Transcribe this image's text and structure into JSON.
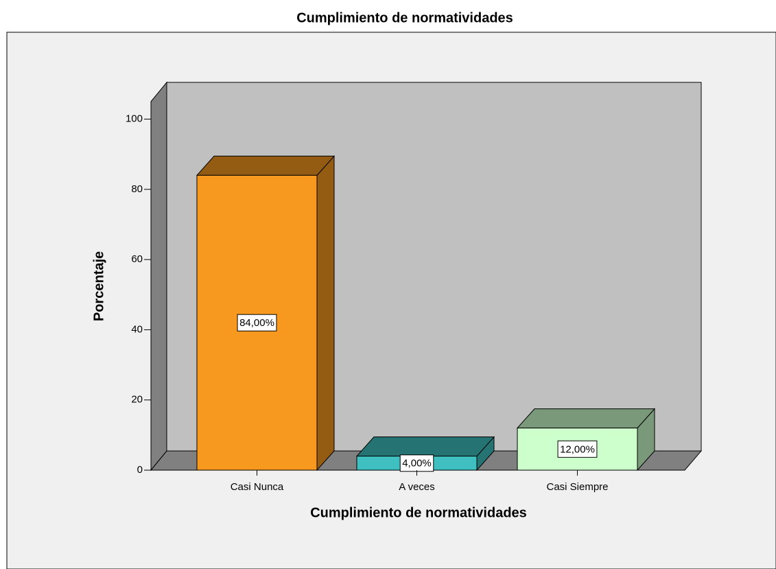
{
  "chart_data": {
    "type": "bar",
    "title": "Cumplimiento de normatividades",
    "xlabel": "Cumplimiento de normatividades",
    "ylabel": "Porcentaje",
    "categories": [
      "Casi Nunca",
      "A veces",
      "Casi Siempre"
    ],
    "values": [
      84,
      4,
      12
    ],
    "value_labels": [
      "84,00%",
      "4,00%",
      "12,00%"
    ],
    "colors": [
      "#f7991f",
      "#3fbfbf",
      "#ccffcc"
    ],
    "ylim": [
      0,
      105
    ],
    "yticks": [
      0,
      20,
      40,
      60,
      80,
      100
    ]
  }
}
